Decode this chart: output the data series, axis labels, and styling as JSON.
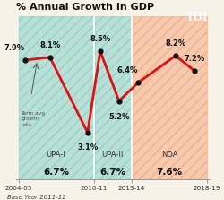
{
  "title": "% Annual Growth In GDP",
  "base_year_label": "Base Year 2011-12",
  "y_values": [
    7.9,
    8.1,
    3.1,
    8.5,
    5.2,
    6.4,
    8.2,
    7.2
  ],
  "x_years": [
    2004,
    2005,
    2009,
    2010,
    2012,
    2013,
    2016,
    2018
  ],
  "labels": [
    "7.9%",
    "8.1%",
    "3.1%",
    "8.5%",
    "5.2%",
    "6.4%",
    "8.2%",
    "7.2%"
  ],
  "label_above": [
    true,
    true,
    false,
    true,
    false,
    true,
    true,
    true
  ],
  "label_ha": [
    "right",
    "center",
    "center",
    "center",
    "center",
    "right",
    "center",
    "center"
  ],
  "region_starts": [
    2004,
    2010,
    2013
  ],
  "region_ends": [
    2010,
    2013,
    2019
  ],
  "region_label1": [
    "UPA-I",
    "UPA-II",
    "NDA"
  ],
  "region_label2": [
    "6.7%",
    "6.7%",
    "7.6%"
  ],
  "region_fill_color": [
    "#90d4ca",
    "#90d4ca",
    "#f5b08a"
  ],
  "region_hatch_color": [
    "#6bbfb4",
    "#6bbfb4",
    "#e89060"
  ],
  "xmin": 2004,
  "xmax": 2019,
  "ylim": [
    0,
    10.8
  ],
  "x_ticks": [
    2004,
    2010,
    2013,
    2019
  ],
  "x_tick_labels": [
    "2004-05",
    "2010-11",
    "2013-14",
    "2018-19"
  ],
  "line_color": "#dd1111",
  "dot_color": "#111111",
  "background_color": "#f7f2e8",
  "toi_bg": "#dd1111",
  "term_avg_label": "Term avg\ngrowth\nrate"
}
